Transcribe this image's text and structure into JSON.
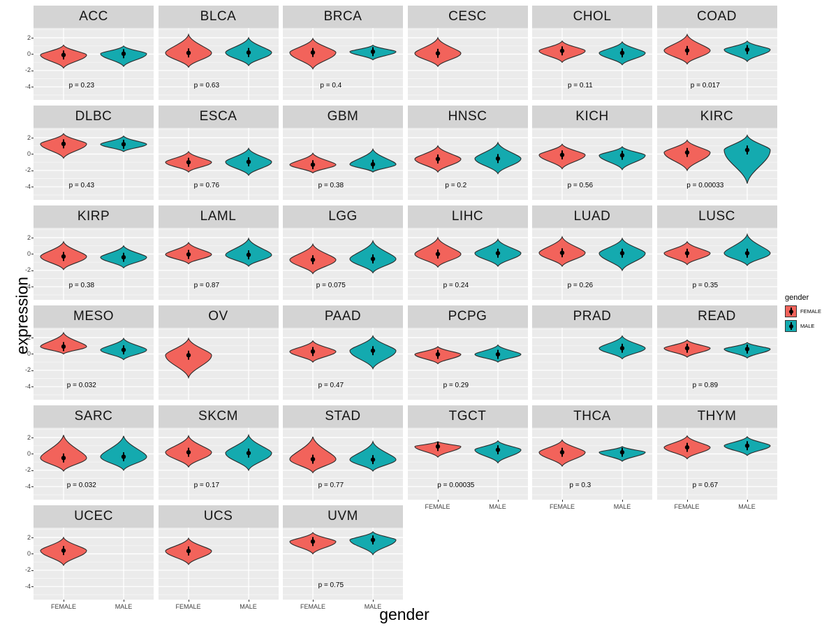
{
  "y_axis": {
    "title": "expression",
    "ticks": [
      2,
      0,
      -2,
      -4
    ]
  },
  "x_axis": {
    "title": "gender",
    "categories": [
      "FEMALE",
      "MALE"
    ]
  },
  "legend": {
    "title": "gender",
    "entries": [
      {
        "label": "FEMALE",
        "color": "#F2635B"
      },
      {
        "label": "MALE",
        "color": "#14AAAF"
      }
    ]
  },
  "colors": {
    "female_fill": "#F2635B",
    "male_fill": "#14AAAF",
    "violin_stroke": "#2b2b2b",
    "panel_bg": "#EBEBEB",
    "strip_bg": "#d4d4d4",
    "grid_major": "#FFFFFF",
    "grid_minor": "#F7F7F7",
    "marker": "#000000"
  },
  "chart_data": {
    "type": "violin",
    "facet_by": "cancer type",
    "xlabel": "gender",
    "ylabel": "expression",
    "categories": [
      "FEMALE",
      "MALE"
    ],
    "y_ticks": [
      2,
      0,
      -2,
      -4
    ],
    "y_domain": [
      -5.6,
      3.2
    ],
    "grid": true,
    "legend_position": "right",
    "facets": [
      {
        "name": "ACC",
        "p_label": "p = 0.23",
        "violins": {
          "FEMALE": {
            "median": -0.1,
            "max": 1.1,
            "min": -1.7
          },
          "MALE": {
            "median": 0.05,
            "max": 1.0,
            "min": -1.5
          }
        }
      },
      {
        "name": "BLCA",
        "p_label": "p = 0.63",
        "violins": {
          "FEMALE": {
            "median": 0.15,
            "max": 2.4,
            "min": -1.6
          },
          "MALE": {
            "median": 0.2,
            "max": 2.0,
            "min": -1.4
          }
        }
      },
      {
        "name": "BRCA",
        "p_label": "p = 0.4",
        "violins": {
          "FEMALE": {
            "median": 0.2,
            "max": 1.9,
            "min": -1.8
          },
          "MALE": {
            "median": 0.3,
            "max": 1.1,
            "min": -0.7
          }
        }
      },
      {
        "name": "CESC",
        "p_label": "",
        "violins": {
          "FEMALE": {
            "median": 0.1,
            "max": 2.0,
            "min": -1.5
          },
          "MALE": null
        }
      },
      {
        "name": "CHOL",
        "p_label": "p = 0.11",
        "violins": {
          "FEMALE": {
            "median": 0.4,
            "max": 1.6,
            "min": -1.0
          },
          "MALE": {
            "median": 0.15,
            "max": 1.5,
            "min": -1.3
          }
        }
      },
      {
        "name": "COAD",
        "p_label": "p = 0.017",
        "violins": {
          "FEMALE": {
            "median": 0.45,
            "max": 2.4,
            "min": -1.2
          },
          "MALE": {
            "median": 0.55,
            "max": 1.6,
            "min": -0.9
          }
        }
      },
      {
        "name": "DLBC",
        "p_label": "p = 0.43",
        "violins": {
          "FEMALE": {
            "median": 1.25,
            "max": 2.5,
            "min": -0.5
          },
          "MALE": {
            "median": 1.2,
            "max": 2.2,
            "min": 0.3
          }
        }
      },
      {
        "name": "ESCA",
        "p_label": "p = 0.76",
        "violins": {
          "FEMALE": {
            "median": -1.0,
            "max": 0.3,
            "min": -2.2
          },
          "MALE": {
            "median": -0.95,
            "max": 0.7,
            "min": -2.6
          }
        }
      },
      {
        "name": "GBM",
        "p_label": "p = 0.38",
        "violins": {
          "FEMALE": {
            "median": -1.3,
            "max": 0.1,
            "min": -2.3
          },
          "MALE": {
            "median": -1.25,
            "max": 0.6,
            "min": -2.2
          }
        }
      },
      {
        "name": "HNSC",
        "p_label": "p = 0.2",
        "violins": {
          "FEMALE": {
            "median": -0.6,
            "max": 1.0,
            "min": -2.2
          },
          "MALE": {
            "median": -0.55,
            "max": 1.4,
            "min": -2.4
          }
        }
      },
      {
        "name": "KICH",
        "p_label": "p = 0.56",
        "violins": {
          "FEMALE": {
            "median": -0.1,
            "max": 1.2,
            "min": -1.8
          },
          "MALE": {
            "median": -0.15,
            "max": 0.9,
            "min": -1.9
          }
        }
      },
      {
        "name": "KIRC",
        "p_label": "p = 0.00033",
        "violins": {
          "FEMALE": {
            "median": 0.2,
            "max": 1.7,
            "min": -2.0
          },
          "MALE": {
            "median": 0.5,
            "max": 2.3,
            "min": -3.6
          }
        }
      },
      {
        "name": "KIRP",
        "p_label": "p = 0.38",
        "violins": {
          "FEMALE": {
            "median": -0.3,
            "max": 1.5,
            "min": -1.9
          },
          "MALE": {
            "median": -0.4,
            "max": 1.0,
            "min": -1.7
          }
        }
      },
      {
        "name": "LAML",
        "p_label": "p = 0.87",
        "violins": {
          "FEMALE": {
            "median": -0.05,
            "max": 1.4,
            "min": -1.2
          },
          "MALE": {
            "median": -0.1,
            "max": 1.9,
            "min": -1.5
          }
        }
      },
      {
        "name": "LGG",
        "p_label": "p = 0.075",
        "violins": {
          "FEMALE": {
            "median": -0.7,
            "max": 1.2,
            "min": -2.4
          },
          "MALE": {
            "median": -0.6,
            "max": 1.6,
            "min": -2.3
          }
        }
      },
      {
        "name": "LIHC",
        "p_label": "p = 0.24",
        "violins": {
          "FEMALE": {
            "median": 0.0,
            "max": 2.0,
            "min": -1.6
          },
          "MALE": {
            "median": 0.1,
            "max": 1.8,
            "min": -1.5
          }
        }
      },
      {
        "name": "LUAD",
        "p_label": "p = 0.26",
        "violins": {
          "FEMALE": {
            "median": 0.15,
            "max": 2.1,
            "min": -1.5
          },
          "MALE": {
            "median": 0.1,
            "max": 1.9,
            "min": -2.0
          }
        }
      },
      {
        "name": "LUSC",
        "p_label": "p = 0.35",
        "violins": {
          "FEMALE": {
            "median": 0.1,
            "max": 1.5,
            "min": -1.3
          },
          "MALE": {
            "median": 0.1,
            "max": 2.4,
            "min": -1.4
          }
        }
      },
      {
        "name": "MESO",
        "p_label": "p = 0.032",
        "violins": {
          "FEMALE": {
            "median": 0.9,
            "max": 2.6,
            "min": 0.0
          },
          "MALE": {
            "median": 0.5,
            "max": 1.9,
            "min": -0.7
          }
        }
      },
      {
        "name": "OV",
        "p_label": "",
        "violins": {
          "FEMALE": {
            "median": -0.15,
            "max": 1.9,
            "min": -2.9
          },
          "MALE": null
        }
      },
      {
        "name": "PAAD",
        "p_label": "p = 0.47",
        "violins": {
          "FEMALE": {
            "median": 0.3,
            "max": 1.6,
            "min": -1.0
          },
          "MALE": {
            "median": 0.4,
            "max": 2.2,
            "min": -1.8
          }
        }
      },
      {
        "name": "PCPG",
        "p_label": "p = 0.29",
        "violins": {
          "FEMALE": {
            "median": -0.05,
            "max": 0.9,
            "min": -1.2
          },
          "MALE": {
            "median": -0.05,
            "max": 1.1,
            "min": -1.0
          }
        }
      },
      {
        "name": "PRAD",
        "p_label": "",
        "violins": {
          "FEMALE": null,
          "MALE": {
            "median": 0.7,
            "max": 2.2,
            "min": -0.6
          }
        }
      },
      {
        "name": "READ",
        "p_label": "p = 0.89",
        "violins": {
          "FEMALE": {
            "median": 0.7,
            "max": 1.7,
            "min": -0.4
          },
          "MALE": {
            "median": 0.6,
            "max": 1.4,
            "min": -0.5
          }
        }
      },
      {
        "name": "SARC",
        "p_label": "p = 0.032",
        "violins": {
          "FEMALE": {
            "median": -0.5,
            "max": 2.3,
            "min": -2.1
          },
          "MALE": {
            "median": -0.35,
            "max": 2.2,
            "min": -2.0
          }
        }
      },
      {
        "name": "SKCM",
        "p_label": "p = 0.17",
        "violins": {
          "FEMALE": {
            "median": 0.2,
            "max": 2.2,
            "min": -1.6
          },
          "MALE": {
            "median": 0.1,
            "max": 2.3,
            "min": -2.0
          }
        }
      },
      {
        "name": "STAD",
        "p_label": "p = 0.77",
        "violins": {
          "FEMALE": {
            "median": -0.65,
            "max": 2.1,
            "min": -2.3
          },
          "MALE": {
            "median": -0.7,
            "max": 1.5,
            "min": -2.1
          }
        }
      },
      {
        "name": "TGCT",
        "p_label": "p = 0.00035",
        "violins": {
          "FEMALE": {
            "median": 0.9,
            "max": 1.5,
            "min": -0.4
          },
          "MALE": {
            "median": 0.5,
            "max": 1.6,
            "min": -1.1
          }
        }
      },
      {
        "name": "THCA",
        "p_label": "p = 0.3",
        "violins": {
          "FEMALE": {
            "median": 0.2,
            "max": 1.7,
            "min": -1.5
          },
          "MALE": {
            "median": 0.2,
            "max": 0.9,
            "min": -0.9
          }
        }
      },
      {
        "name": "THYM",
        "p_label": "p = 0.67",
        "violins": {
          "FEMALE": {
            "median": 0.8,
            "max": 2.2,
            "min": -0.6
          },
          "MALE": {
            "median": 1.0,
            "max": 2.1,
            "min": -0.2
          }
        }
      },
      {
        "name": "UCEC",
        "p_label": "",
        "violins": {
          "FEMALE": {
            "median": 0.4,
            "max": 2.0,
            "min": -1.4
          },
          "MALE": null
        }
      },
      {
        "name": "UCS",
        "p_label": "",
        "violins": {
          "FEMALE": {
            "median": 0.35,
            "max": 1.9,
            "min": -1.3
          },
          "MALE": null
        }
      },
      {
        "name": "UVM",
        "p_label": "p = 0.75",
        "violins": {
          "FEMALE": {
            "median": 1.5,
            "max": 2.6,
            "min": 0.0
          },
          "MALE": {
            "median": 1.7,
            "max": 2.7,
            "min": -0.1
          }
        }
      }
    ]
  }
}
